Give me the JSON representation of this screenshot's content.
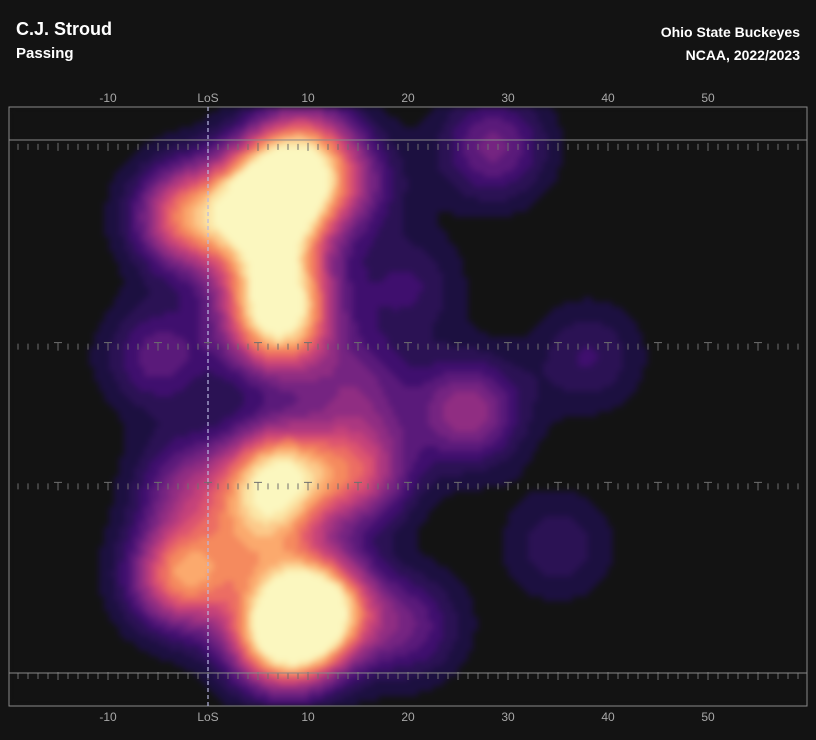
{
  "header": {
    "player": "C.J. Stroud",
    "play_type": "Passing",
    "team": "Ohio State Buckeyes",
    "season": "NCAA, 2022/2023"
  },
  "colors": {
    "background": "#131313",
    "field_line": "#8a8a8a",
    "los_line": "#b9b9e0",
    "colormap": [
      "#1c1040",
      "#2b1254",
      "#3f0f6e",
      "#5a1a7a",
      "#752481",
      "#902d82",
      "#ab3780",
      "#c5427a",
      "#dc5470",
      "#ec6d63",
      "#f58a5e",
      "#fba96d",
      "#fcc98a",
      "#fbe6a6",
      "#fbf7bf"
    ]
  },
  "chart_data": {
    "type": "heatmap",
    "title": "",
    "xlabel": "",
    "ylabel": "",
    "x_axis": {
      "unit": "yards from line of scrimmage",
      "range": [
        -20,
        60
      ],
      "tick_values": [
        -10,
        0,
        10,
        20,
        30,
        40,
        50
      ],
      "tick_labels": [
        "-10",
        "LoS",
        "10",
        "20",
        "30",
        "40",
        "50"
      ],
      "shown": "top and bottom"
    },
    "y_axis": {
      "range": [
        0,
        53.3
      ],
      "unit": "yards across field",
      "labels_shown": false
    },
    "line_of_scrimmage": 0,
    "hash_rows_y": [
      4,
      24,
      38,
      57
    ],
    "density_peaks": [
      {
        "x": 7.5,
        "y": 53,
        "weight": 1.0
      },
      {
        "x": 11,
        "y": 50,
        "weight": 0.95
      },
      {
        "x": 7,
        "y": 19,
        "weight": 0.85
      },
      {
        "x": 6,
        "y": 9,
        "weight": 0.65
      },
      {
        "x": 6,
        "y": 12,
        "weight": 0.5
      },
      {
        "x": 8,
        "y": 7,
        "weight": 0.45
      },
      {
        "x": 7,
        "y": 37,
        "weight": 0.9
      },
      {
        "x": -2,
        "y": 11,
        "weight": 0.7
      },
      {
        "x": -2.5,
        "y": 47,
        "weight": 0.75
      },
      {
        "x": 7,
        "y": 23,
        "weight": 0.45
      },
      {
        "x": 5,
        "y": 43,
        "weight": 0.45
      },
      {
        "x": 15,
        "y": 36.5,
        "weight": 0.55
      },
      {
        "x": 26,
        "y": 30.5,
        "weight": 0.45
      },
      {
        "x": -2,
        "y": 38,
        "weight": 0.35
      },
      {
        "x": 28.5,
        "y": 4,
        "weight": 0.35
      },
      {
        "x": -5,
        "y": 25,
        "weight": 0.3
      },
      {
        "x": 10,
        "y": 4,
        "weight": 0.4
      },
      {
        "x": 14,
        "y": 8,
        "weight": 0.3
      },
      {
        "x": 35,
        "y": 44,
        "weight": 0.18
      },
      {
        "x": 38,
        "y": 25,
        "weight": 0.2
      },
      {
        "x": 20,
        "y": 52,
        "weight": 0.3
      },
      {
        "x": 15,
        "y": 28,
        "weight": 0.3
      },
      {
        "x": 20,
        "y": 18,
        "weight": 0.2
      }
    ]
  }
}
